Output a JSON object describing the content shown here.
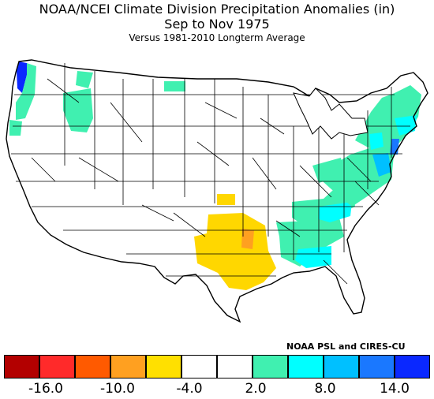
{
  "header": {
    "title": "NOAA/NCEI Climate Division Precipitation Anomalies (in)",
    "period": "Sep to Nov 1975",
    "baseline": "Versus 1981-2010 Longterm Average"
  },
  "credit": "NOAA PSL and CIRES-CU",
  "legend": {
    "colors": [
      "#b30000",
      "#ff2a2a",
      "#ff5a00",
      "#ffa020",
      "#ffe000",
      "#ffffff",
      "#ffffff",
      "#40f0b0",
      "#00ffff",
      "#00c0ff",
      "#1a78ff",
      "#0a28ff"
    ],
    "tick_labels": [
      "-16.0",
      "-10.0",
      "-4.0",
      "2.0",
      "8.0",
      "14.0"
    ]
  },
  "map": {
    "region": "Contiguous United States climate divisions",
    "colors": {
      "land": "#ffffff",
      "border": "#000000",
      "green": "#40f0b0",
      "cyan": "#00ffff",
      "lightblue": "#00c0ff",
      "blue": "#0a28ff",
      "yellow": "#ffd700",
      "orange": "#ffa020"
    }
  }
}
